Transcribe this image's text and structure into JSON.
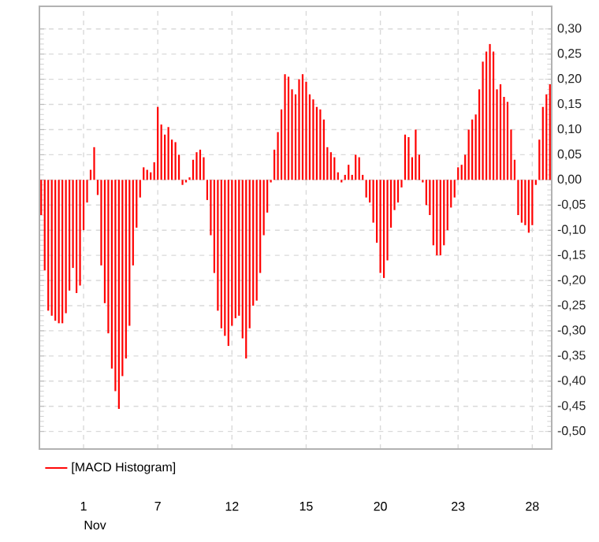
{
  "chart_data": {
    "type": "bar",
    "xlabel": "Nov",
    "categories": [
      null,
      null,
      null,
      null,
      null,
      null,
      null,
      null,
      null,
      null,
      null,
      null,
      "1",
      null,
      null,
      null,
      null,
      null,
      null,
      null,
      null,
      null,
      null,
      null,
      null,
      null,
      null,
      null,
      null,
      null,
      null,
      null,
      null,
      "7",
      null,
      null,
      null,
      null,
      null,
      null,
      null,
      null,
      null,
      null,
      null,
      null,
      null,
      null,
      null,
      null,
      null,
      null,
      null,
      null,
      "12",
      null,
      null,
      null,
      null,
      null,
      null,
      null,
      null,
      null,
      null,
      null,
      null,
      null,
      null,
      null,
      null,
      null,
      null,
      null,
      null,
      "15",
      null,
      null,
      null,
      null,
      null,
      null,
      null,
      null,
      null,
      null,
      null,
      null,
      null,
      null,
      null,
      null,
      null,
      null,
      null,
      null,
      "20",
      null,
      null,
      null,
      null,
      null,
      null,
      null,
      null,
      null,
      null,
      null,
      null,
      null,
      null,
      null,
      null,
      null,
      null,
      null,
      null,
      null,
      "23",
      null,
      null,
      null,
      null,
      null,
      null,
      null,
      null,
      null,
      null,
      null,
      null,
      null,
      null,
      null,
      null,
      null,
      null,
      null,
      null,
      "28",
      null,
      null,
      null,
      null,
      null
    ],
    "series": [
      {
        "name": "[MACD Histogram]",
        "color": "#ff0000",
        "values": [
          -0.07,
          -0.18,
          -0.26,
          -0.27,
          -0.28,
          -0.285,
          -0.285,
          -0.265,
          -0.22,
          -0.175,
          -0.225,
          -0.21,
          -0.1,
          -0.045,
          0.02,
          0.065,
          -0.03,
          -0.17,
          -0.245,
          -0.305,
          -0.375,
          -0.42,
          -0.455,
          -0.39,
          -0.355,
          -0.29,
          -0.17,
          -0.095,
          -0.035,
          0.025,
          0.02,
          0.015,
          0.035,
          0.145,
          0.11,
          0.09,
          0.105,
          0.08,
          0.075,
          0.05,
          -0.01,
          -0.005,
          0.005,
          0.04,
          0.055,
          0.06,
          0.045,
          -0.04,
          -0.11,
          -0.185,
          -0.26,
          -0.295,
          -0.31,
          -0.33,
          -0.29,
          -0.275,
          -0.27,
          -0.315,
          -0.355,
          -0.295,
          -0.25,
          -0.24,
          -0.185,
          -0.11,
          -0.065,
          -0.005,
          0.06,
          0.095,
          0.14,
          0.21,
          0.205,
          0.18,
          0.17,
          0.2,
          0.21,
          0.195,
          0.17,
          0.16,
          0.145,
          0.14,
          0.12,
          0.065,
          0.055,
          0.045,
          0.015,
          -0.005,
          0.01,
          0.03,
          0.01,
          0.05,
          0.045,
          0.01,
          -0.035,
          -0.045,
          -0.085,
          -0.125,
          -0.185,
          -0.195,
          -0.16,
          -0.095,
          -0.06,
          -0.045,
          -0.015,
          0.09,
          0.085,
          0.045,
          0.1,
          0.05,
          -0.005,
          -0.05,
          -0.07,
          -0.13,
          -0.15,
          -0.15,
          -0.13,
          -0.1,
          -0.055,
          -0.035,
          0.025,
          0.03,
          0.05,
          0.1,
          0.12,
          0.13,
          0.18,
          0.235,
          0.255,
          0.27,
          0.255,
          0.18,
          0.19,
          0.165,
          0.155,
          0.1,
          0.04,
          -0.07,
          -0.085,
          -0.09,
          -0.105,
          -0.09,
          -0.01,
          0.08,
          0.145,
          0.17,
          0.19
        ]
      }
    ],
    "ylim": [
      -0.535,
      0.345
    ],
    "yticks": [
      {
        "value": -0.5,
        "label": "-0,50"
      },
      {
        "value": -0.45,
        "label": "-0,45"
      },
      {
        "value": -0.4,
        "label": "-0,40"
      },
      {
        "value": -0.35,
        "label": "-0,35"
      },
      {
        "value": -0.3,
        "label": "-0,30"
      },
      {
        "value": -0.25,
        "label": "-0,25"
      },
      {
        "value": -0.2,
        "label": "-0,20"
      },
      {
        "value": -0.15,
        "label": "-0,15"
      },
      {
        "value": -0.1,
        "label": "-0,10"
      },
      {
        "value": -0.05,
        "label": "-0,05"
      },
      {
        "value": 0,
        "label": "0,00"
      },
      {
        "value": 0.05,
        "label": "0,05"
      },
      {
        "value": 0.1,
        "label": "0,10"
      },
      {
        "value": 0.15,
        "label": "0,15"
      },
      {
        "value": 0.2,
        "label": "0,20"
      },
      {
        "value": 0.25,
        "label": "0,25"
      },
      {
        "value": 0.3,
        "label": "0,30"
      }
    ],
    "grid": true,
    "legend": "bottom"
  }
}
